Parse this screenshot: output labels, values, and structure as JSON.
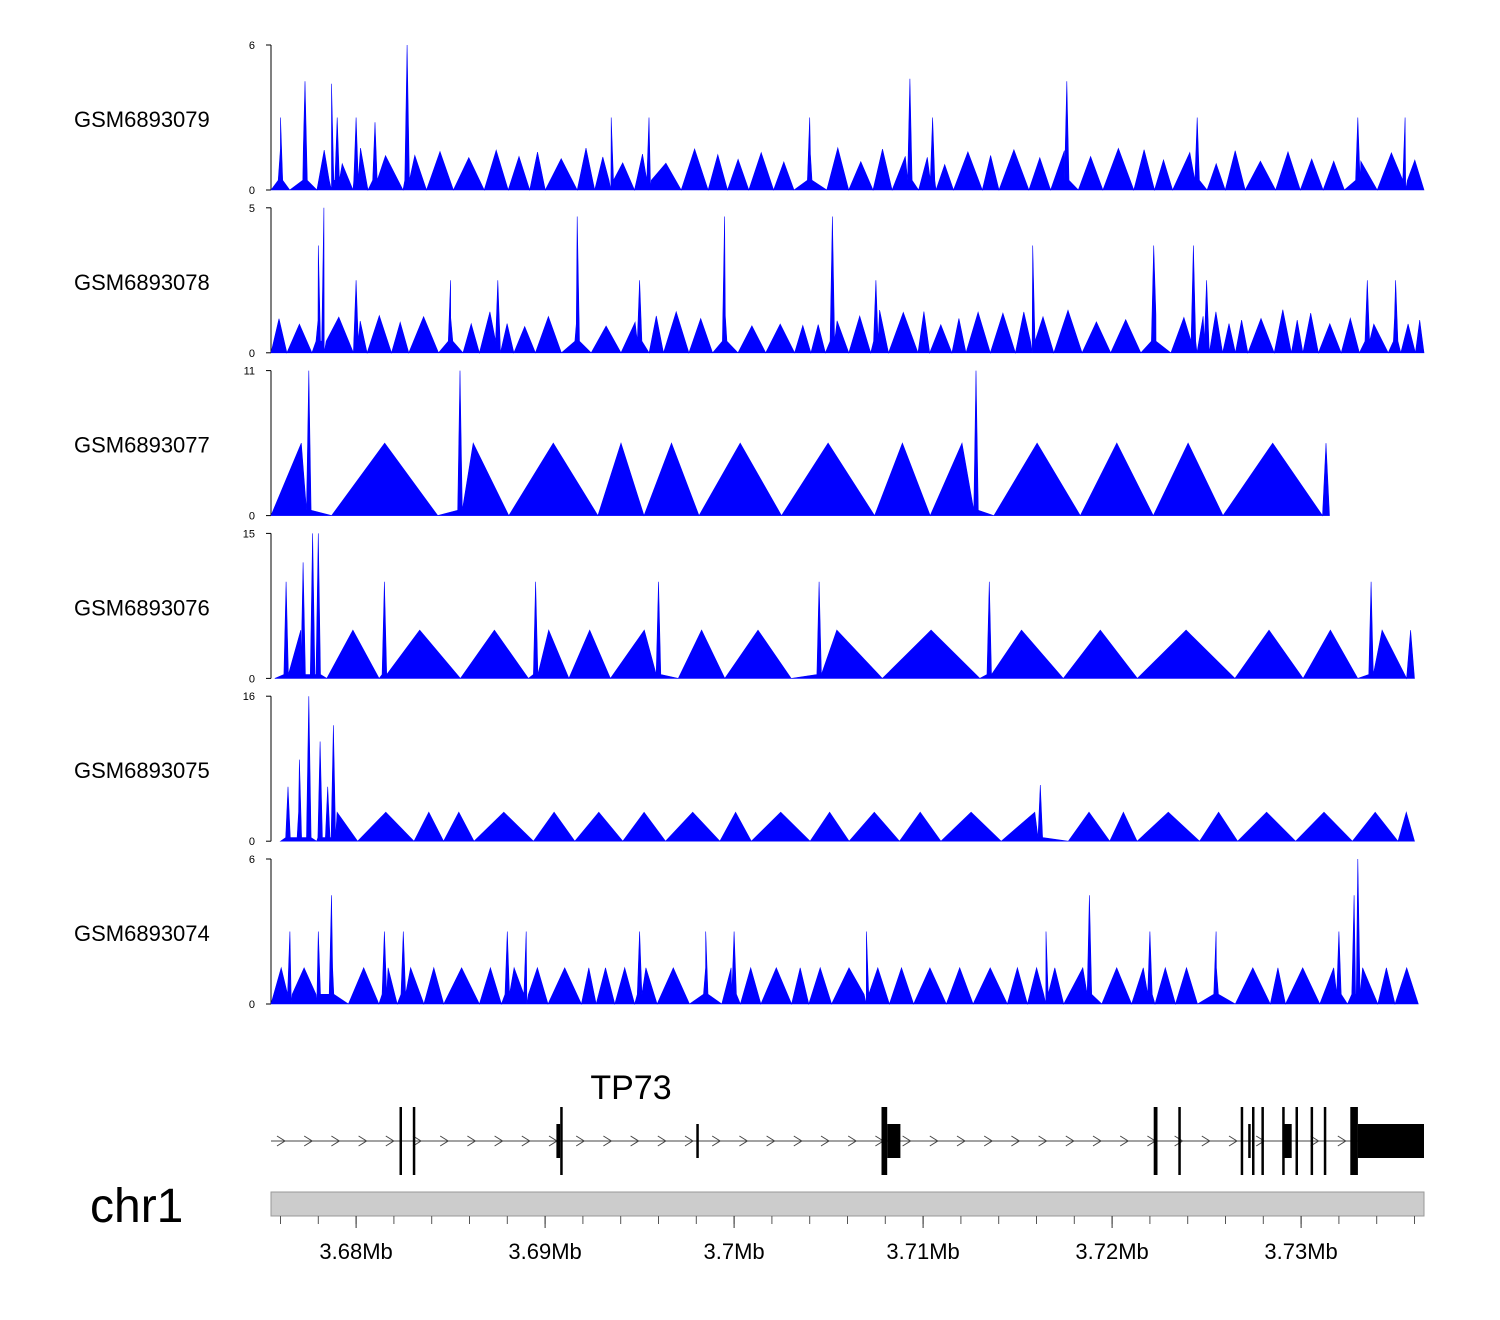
{
  "chart_data": {
    "type": "area",
    "title": "",
    "chromosome": "chr1",
    "region": {
      "start": 3.6755,
      "end": 3.7365,
      "unit": "Mb"
    },
    "signal_color": "#0000ff",
    "gene_color": "#000000",
    "ideogram_color": "#cccccc",
    "tracks": [
      {
        "name": "GSM6893079",
        "ymax": 6,
        "ylim": [
          0,
          6
        ],
        "data_start": 3.6755,
        "data_end": 3.7365,
        "base_interval": 0.0013,
        "base_height": 1.4,
        "jitter": 0.25,
        "seed": 7,
        "peaks": [
          [
            3.6827,
            6.0
          ],
          [
            3.6773,
            4.5
          ],
          [
            3.6787,
            4.4
          ],
          [
            3.7093,
            4.6
          ],
          [
            3.7176,
            4.5
          ],
          [
            3.676,
            3.0
          ],
          [
            3.679,
            3.0
          ],
          [
            3.68,
            3.0
          ],
          [
            3.681,
            2.8
          ],
          [
            3.6935,
            3.0
          ],
          [
            3.6955,
            3.0
          ],
          [
            3.704,
            3.0
          ],
          [
            3.7105,
            3.0
          ],
          [
            3.7245,
            3.0
          ],
          [
            3.733,
            3.0
          ],
          [
            3.7355,
            3.0
          ]
        ]
      },
      {
        "name": "GSM6893078",
        "ymax": 5,
        "ylim": [
          0,
          5
        ],
        "data_start": 3.6755,
        "data_end": 3.7365,
        "base_interval": 0.0011,
        "base_height": 1.2,
        "jitter": 0.25,
        "seed": 13,
        "peaks": [
          [
            3.6783,
            5.0
          ],
          [
            3.6917,
            4.7
          ],
          [
            3.6995,
            4.7
          ],
          [
            3.7052,
            4.7
          ],
          [
            3.7158,
            3.7
          ],
          [
            3.7243,
            3.7
          ],
          [
            3.7222,
            3.7
          ],
          [
            3.678,
            3.7
          ],
          [
            3.68,
            2.5
          ],
          [
            3.685,
            2.5
          ],
          [
            3.6875,
            2.5
          ],
          [
            3.695,
            2.5
          ],
          [
            3.7075,
            2.5
          ],
          [
            3.725,
            2.5
          ],
          [
            3.7335,
            2.5
          ],
          [
            3.735,
            2.5
          ]
        ]
      },
      {
        "name": "GSM6893077",
        "ymax": 11,
        "ylim": [
          0,
          11
        ],
        "data_start": 3.6755,
        "data_end": 3.7315,
        "base_interval": 0.0042,
        "base_height": 5.5,
        "jitter": 0.0,
        "seed": 3,
        "peaks": [
          [
            3.6775,
            11.0
          ],
          [
            3.6855,
            11.0
          ],
          [
            3.7128,
            11.0
          ]
        ]
      },
      {
        "name": "GSM6893076",
        "ymax": 15,
        "ylim": [
          0,
          15
        ],
        "data_start": 3.6757,
        "data_end": 3.736,
        "base_interval": 0.0036,
        "base_height": 5.0,
        "jitter": 0.0,
        "seed": 5,
        "peaks": [
          [
            3.6777,
            15.0
          ],
          [
            3.678,
            15.0
          ],
          [
            3.6772,
            12.0
          ],
          [
            3.6763,
            10.0
          ],
          [
            3.6815,
            10.0
          ],
          [
            3.6895,
            10.0
          ],
          [
            3.696,
            10.0
          ],
          [
            3.7045,
            10.0
          ],
          [
            3.7135,
            10.0
          ],
          [
            3.7337,
            10.0
          ]
        ]
      },
      {
        "name": "GSM6893075",
        "ymax": 16,
        "ylim": [
          0,
          16
        ],
        "data_start": 3.676,
        "data_end": 3.736,
        "base_interval": 0.0025,
        "base_height": 3.2,
        "jitter": 0.0,
        "seed": 11,
        "peaks": [
          [
            3.6775,
            16.0
          ],
          [
            3.6788,
            12.8
          ],
          [
            3.6781,
            11.0
          ],
          [
            3.677,
            9.0
          ],
          [
            3.6764,
            6.0
          ],
          [
            3.6785,
            6.0
          ],
          [
            3.7162,
            6.2
          ]
        ]
      },
      {
        "name": "GSM6893074",
        "ymax": 6,
        "ylim": [
          0,
          6
        ],
        "data_start": 3.6755,
        "data_end": 3.7362,
        "base_interval": 0.0014,
        "base_height": 1.5,
        "jitter": 0.0,
        "seed": 17,
        "peaks": [
          [
            3.6787,
            4.5
          ],
          [
            3.7188,
            4.5
          ],
          [
            3.733,
            6.0
          ],
          [
            3.7328,
            4.5
          ],
          [
            3.6765,
            3.0
          ],
          [
            3.678,
            3.0
          ],
          [
            3.6815,
            3.0
          ],
          [
            3.6825,
            3.0
          ],
          [
            3.688,
            3.0
          ],
          [
            3.689,
            3.0
          ],
          [
            3.695,
            3.0
          ],
          [
            3.6985,
            3.0
          ],
          [
            3.7,
            3.0
          ],
          [
            3.707,
            3.0
          ],
          [
            3.7165,
            3.0
          ],
          [
            3.722,
            3.0
          ],
          [
            3.7255,
            3.0
          ],
          [
            3.732,
            3.0
          ]
        ]
      }
    ],
    "gene": {
      "name": "TP73",
      "strand": "+",
      "start": 3.6755,
      "end": 3.7365,
      "exons": [
        {
          "start": 3.6823,
          "end": 3.6824,
          "height": "full"
        },
        {
          "start": 3.683,
          "end": 3.6831,
          "height": "full"
        },
        {
          "start": 3.6906,
          "end": 3.6908,
          "height": "half"
        },
        {
          "start": 3.6908,
          "end": 3.6909,
          "height": "full"
        },
        {
          "start": 3.698,
          "end": 3.6981,
          "height": "half"
        },
        {
          "start": 3.7078,
          "end": 3.7081,
          "height": "full"
        },
        {
          "start": 3.7081,
          "end": 3.7088,
          "height": "half"
        },
        {
          "start": 3.7222,
          "end": 3.7224,
          "height": "full"
        },
        {
          "start": 3.7235,
          "end": 3.7236,
          "height": "full"
        },
        {
          "start": 3.7268,
          "end": 3.7269,
          "height": "full"
        },
        {
          "start": 3.7272,
          "end": 3.7273,
          "height": "half"
        },
        {
          "start": 3.7274,
          "end": 3.7275,
          "height": "full"
        },
        {
          "start": 3.7279,
          "end": 3.728,
          "height": "full"
        },
        {
          "start": 3.729,
          "end": 3.7291,
          "height": "full"
        },
        {
          "start": 3.7291,
          "end": 3.7295,
          "height": "half"
        },
        {
          "start": 3.7297,
          "end": 3.7298,
          "height": "full"
        },
        {
          "start": 3.7305,
          "end": 3.7306,
          "height": "full"
        },
        {
          "start": 3.7312,
          "end": 3.7313,
          "height": "full"
        },
        {
          "start": 3.7326,
          "end": 3.733,
          "height": "full"
        },
        {
          "start": 3.733,
          "end": 3.7365,
          "height": "half"
        }
      ]
    },
    "xaxis": {
      "major_ticks": [
        3.68,
        3.69,
        3.7,
        3.71,
        3.72,
        3.73
      ],
      "tick_labels": [
        "3.68Mb",
        "3.69Mb",
        "3.7Mb",
        "3.71Mb",
        "3.72Mb",
        "3.73Mb"
      ],
      "minor_step": 0.002
    }
  }
}
